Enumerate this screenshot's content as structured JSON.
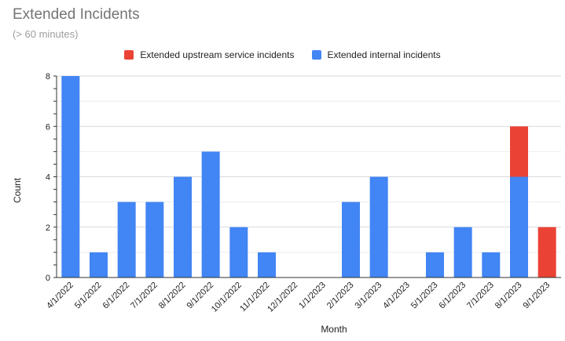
{
  "chart_data": {
    "type": "bar",
    "stacked": true,
    "title": "Extended Incidents",
    "subtitle": "(> 60 minutes)",
    "xlabel": "Month",
    "ylabel": "Count",
    "ylim": [
      0,
      8
    ],
    "yticks": [
      "0",
      "2",
      "4",
      "6",
      "8"
    ],
    "legend_position": "top",
    "grid": true,
    "categories": [
      "4/1/2022",
      "5/1/2022",
      "6/1/2022",
      "7/1/2022",
      "8/1/2022",
      "9/1/2022",
      "10/1/2022",
      "11/1/2022",
      "12/1/2022",
      "1/1/2023",
      "2/1/2023",
      "3/1/2023",
      "4/1/2023",
      "5/1/2023",
      "6/1/2023",
      "7/1/2023",
      "8/1/2023",
      "9/1/2023"
    ],
    "series": [
      {
        "name": "Extended internal incidents",
        "color": "#4285f4",
        "values": [
          8,
          1,
          3,
          3,
          4,
          5,
          2,
          1,
          0,
          0,
          3,
          4,
          0,
          1,
          2,
          1,
          4,
          0
        ]
      },
      {
        "name": "Extended upstream service incidents",
        "color": "#ea4335",
        "values": [
          0,
          0,
          0,
          0,
          0,
          0,
          0,
          0,
          0,
          0,
          0,
          0,
          0,
          0,
          0,
          0,
          2,
          2
        ]
      }
    ],
    "legend_order": [
      1,
      0
    ]
  }
}
